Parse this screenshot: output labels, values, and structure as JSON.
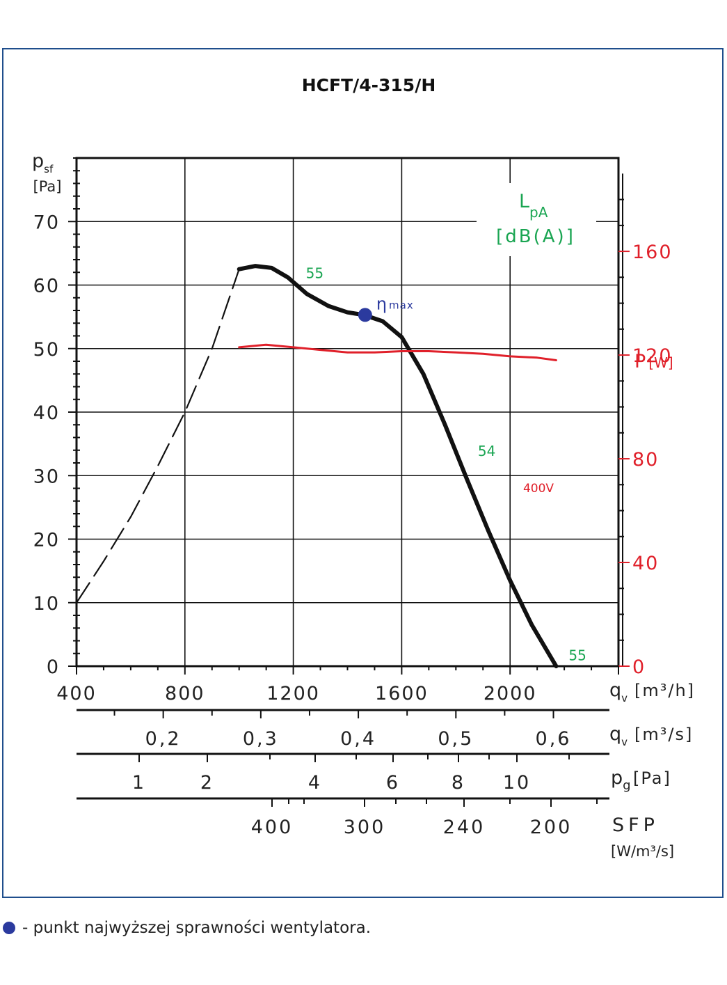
{
  "chart_data": {
    "type": "line",
    "title": "HCFT/4-315/H",
    "y_left": {
      "label_main": "p",
      "label_sub": "sf",
      "unit": "[Pa]",
      "range": [
        0,
        80
      ],
      "ticks": [
        0,
        10,
        20,
        30,
        40,
        50,
        60,
        70
      ],
      "tick_labels": [
        "0",
        "10",
        "20",
        "30",
        "40",
        "50",
        "60",
        "70"
      ],
      "minor_step": 2
    },
    "y_right": {
      "label_main": "P",
      "label_unit": "[W]",
      "range": [
        0,
        196
      ],
      "ticks": [
        0,
        40,
        80,
        120,
        160
      ],
      "tick_labels": [
        "0",
        "40",
        "80",
        "120",
        "160"
      ],
      "color": "#e0202a"
    },
    "x": {
      "label_main": "q",
      "label_sub": "v",
      "unit": "[m³/h]",
      "range": [
        400,
        2400
      ],
      "ticks": [
        400,
        800,
        1200,
        1600,
        2000
      ],
      "tick_labels": [
        "400",
        "800",
        "1200",
        "1600",
        "2000"
      ],
      "grid": [
        400,
        800,
        1200,
        1600,
        2000,
        2400
      ],
      "minor_step": 100
    },
    "secondary_scales": [
      {
        "name": "qv_m3s",
        "label_main": "q",
        "label_sub": "v",
        "unit": "[m³/s]",
        "ticks": [
          0.2,
          0.3,
          0.4,
          0.5,
          0.6
        ],
        "tick_labels": [
          "0,2",
          "0,3",
          "0,4",
          "0,5",
          "0,6"
        ]
      },
      {
        "name": "pg",
        "label_main": "p",
        "label_sub": "g",
        "unit": "[Pa]",
        "ticks": [
          1,
          2,
          4,
          6,
          8,
          10
        ],
        "tick_labels": [
          "1",
          "2",
          "4",
          "6",
          "8",
          "10"
        ],
        "extra_ticks": [
          3,
          5,
          7,
          9,
          12
        ]
      },
      {
        "name": "sfp",
        "label_main": "SFP",
        "unit": "[W/m³/s]",
        "ticks": [
          400,
          300,
          240,
          200
        ],
        "tick_labels": [
          "400",
          "300",
          "240",
          "200"
        ],
        "extra_ticks": [
          375,
          350,
          275,
          260,
          220,
          180
        ]
      }
    ],
    "series": [
      {
        "kind": "pressure-unstable",
        "style": "dashed",
        "color": "#111111",
        "x": [
          400,
          500,
          600,
          700,
          800,
          900,
          1000
        ],
        "y": [
          10,
          16.5,
          23.5,
          31.5,
          40,
          50,
          62.5
        ]
      },
      {
        "kind": "pressure",
        "style": "solid",
        "color": "#111111",
        "x": [
          1000,
          1060,
          1120,
          1180,
          1250,
          1330,
          1400,
          1460,
          1530,
          1600,
          1680,
          1760,
          1840,
          1920,
          2000,
          2080,
          2170
        ],
        "y": [
          62.5,
          63,
          62.7,
          61.2,
          58.6,
          56.7,
          55.7,
          55.3,
          54.3,
          51.8,
          46,
          38,
          29.5,
          21.3,
          13.5,
          6.5,
          0
        ]
      },
      {
        "name": "400V",
        "kind": "power",
        "style": "solid",
        "color": "#e0202a",
        "x": [
          1000,
          1100,
          1200,
          1300,
          1400,
          1500,
          1600,
          1700,
          1800,
          1900,
          2000,
          2100,
          2170
        ],
        "y": [
          123,
          124,
          123,
          122,
          121,
          121,
          121.5,
          121.5,
          121,
          120.5,
          119.5,
          119,
          118
        ]
      }
    ],
    "efficiency_point": {
      "x": 1465,
      "y": 55.3,
      "label": "η",
      "label_sub": "max",
      "color": "#2b3a9e"
    },
    "sound_labels": [
      {
        "text": "55",
        "x": 1200,
        "y": 62
      },
      {
        "text": "54",
        "x": 1835,
        "y": 34
      },
      {
        "text": "55",
        "x": 2170,
        "y": 1.8
      }
    ],
    "sound_title": "L",
    "sound_title_sub": "pA",
    "sound_unit": "[dB(A)]",
    "sound_color": "#1aa552",
    "grid": true
  },
  "legend": {
    "marker_color": "#2b3a9e",
    "text": "- punkt najwyższej sprawności wentylatora."
  }
}
